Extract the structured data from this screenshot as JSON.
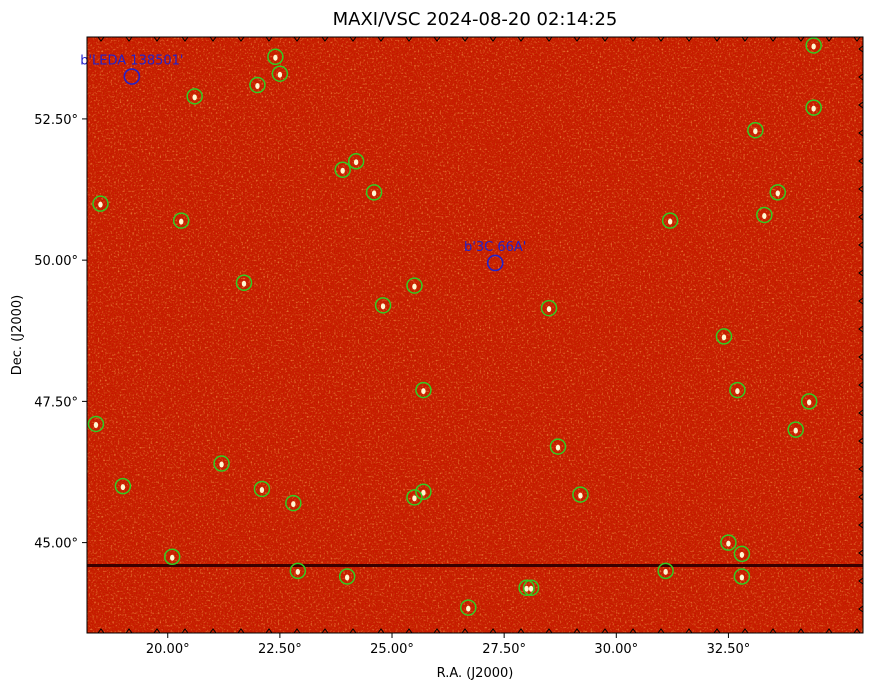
{
  "figure": {
    "title": "MAXI/VSC 2024-08-20 02:14:25",
    "xlabel": "R.A. (J2000)",
    "ylabel": "Dec. (J2000)",
    "x_ticks": [
      "20.00°",
      "22.50°",
      "25.00°",
      "27.50°",
      "30.00°",
      "32.50°"
    ],
    "y_ticks": [
      "52.50°",
      "50.00°",
      "47.50°",
      "45.00°"
    ]
  },
  "catalog_labels": [
    {
      "text": "b'LEDA  138501'",
      "ra": 19.2,
      "dec": 53.25
    },
    {
      "text": "b'3C  66A'",
      "ra": 27.3,
      "dec": 49.95
    }
  ],
  "colors": {
    "background": "#c81400",
    "marker_green": "#33cc22",
    "marker_blue": "#2222cc",
    "stripe": "#3a0000"
  },
  "chart_data": {
    "type": "scatter",
    "title": "MAXI/VSC 2024-08-20 02:14:25",
    "xlabel": "R.A. (J2000)",
    "ylabel": "Dec. (J2000)",
    "xlim": [
      18.2,
      35.5
    ],
    "ylim": [
      43.4,
      53.95
    ],
    "series": [
      {
        "name": "",
        "x": [
          18.5,
          18.4,
          19.0,
          20.1,
          20.3,
          20.6,
          21.2,
          21.7,
          22.0,
          22.1,
          22.4,
          22.5,
          22.8,
          22.9,
          23.9,
          24.0,
          24.2,
          24.6,
          24.8,
          25.5,
          25.5,
          25.7,
          25.7,
          26.7,
          28.0,
          28.1,
          28.5,
          28.7,
          29.2,
          31.1,
          31.2,
          32.4,
          32.5,
          32.8,
          32.8,
          32.7,
          33.1,
          33.3,
          33.6,
          34.0,
          34.3,
          34.4,
          34.4
        ],
        "y": [
          51.0,
          47.1,
          46.0,
          44.75,
          50.7,
          52.9,
          46.4,
          49.6,
          53.1,
          45.95,
          53.6,
          53.3,
          45.7,
          44.5,
          51.6,
          44.4,
          51.75,
          51.2,
          49.2,
          49.55,
          45.8,
          47.7,
          45.9,
          43.85,
          44.2,
          44.2,
          49.15,
          46.7,
          45.85,
          44.5,
          50.7,
          48.65,
          45.0,
          44.8,
          44.4,
          47.7,
          52.3,
          50.8,
          51.2,
          47.0,
          47.5,
          52.7,
          53.8
        ]
      },
      {
        "name": "",
        "x": [
          19.2,
          27.3
        ],
        "y": [
          53.25,
          49.95
        ]
      }
    ]
  }
}
